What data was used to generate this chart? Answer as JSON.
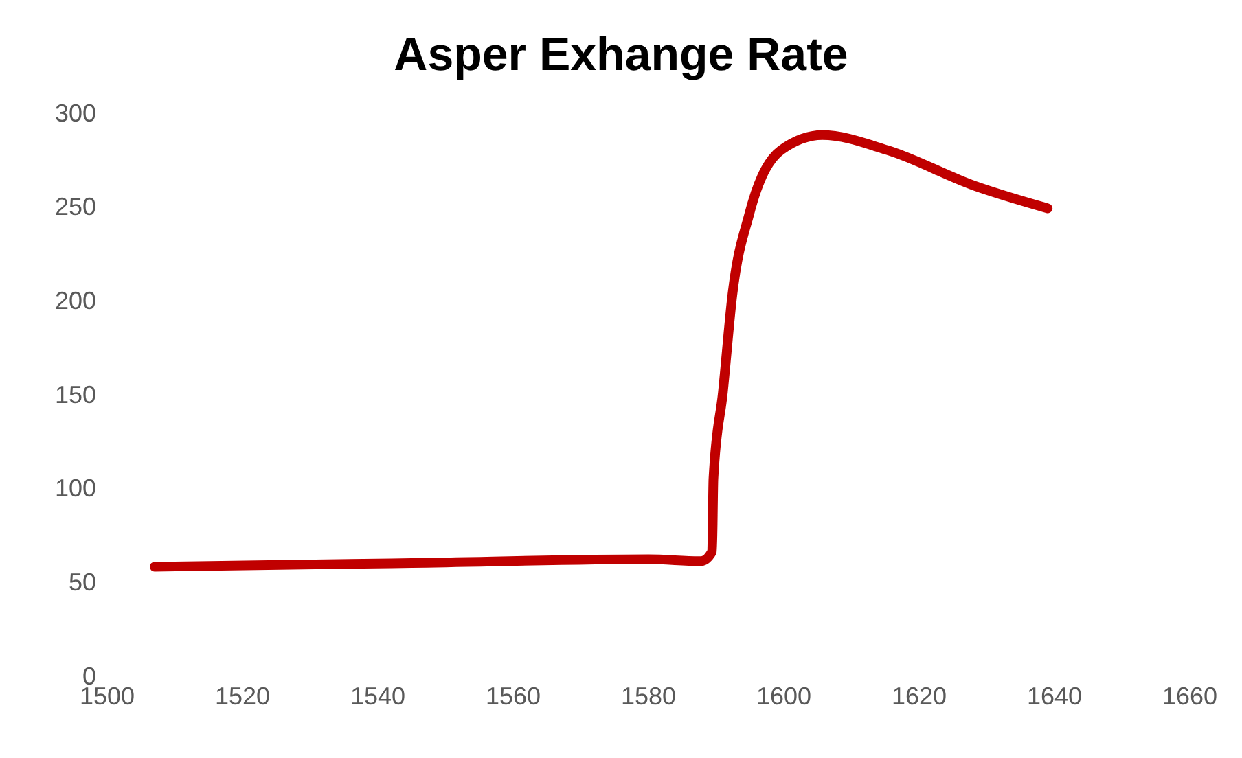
{
  "chart_data": {
    "type": "line",
    "title": "Asper Exhange Rate",
    "x": [
      1507,
      1545,
      1580,
      1587.8,
      1589.4,
      1589.6,
      1591,
      1592.4,
      1594.9,
      1599.6,
      1605.7,
      1615.3,
      1628.2,
      1639
    ],
    "values": [
      58,
      60,
      62,
      61,
      66,
      105,
      151,
      203,
      246,
      280,
      288,
      280,
      261,
      249
    ],
    "color": "#c00000",
    "xlim": [
      1500,
      1660
    ],
    "xticks": [
      1500,
      1520,
      1540,
      1560,
      1580,
      1600,
      1620,
      1640,
      1660
    ],
    "ylim": [
      0,
      300
    ],
    "yticks": [
      0,
      50,
      100,
      150,
      200,
      250,
      300
    ],
    "marker": "none",
    "line_style": "solid"
  }
}
